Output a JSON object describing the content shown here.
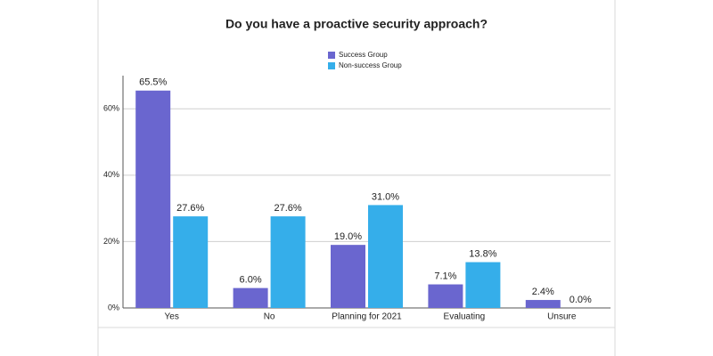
{
  "chart_data": {
    "type": "bar",
    "title": "Do you have a proactive security approach?",
    "categories": [
      "Yes",
      "No",
      "Planning for 2021",
      "Evaluating",
      "Unsure"
    ],
    "series": [
      {
        "name": "Success Group",
        "color": "#6a66cf",
        "values": [
          65.5,
          6.0,
          19.0,
          7.1,
          2.4
        ],
        "value_labels": [
          "65.5%",
          "6.0%",
          "19.0%",
          "7.1%",
          "2.4%"
        ]
      },
      {
        "name": "Non-success Group",
        "color": "#35aeea",
        "values": [
          27.6,
          27.6,
          31.0,
          13.8,
          0.0
        ],
        "value_labels": [
          "27.6%",
          "27.6%",
          "31.0%",
          "13.8%",
          "0.0%"
        ]
      }
    ],
    "ylim": [
      0,
      70
    ],
    "yticks": [
      {
        "value": 0,
        "label": "0%"
      },
      {
        "value": 20,
        "label": "20%"
      },
      {
        "value": 40,
        "label": "40%"
      },
      {
        "value": 60,
        "label": "60%"
      }
    ],
    "grid": true
  }
}
